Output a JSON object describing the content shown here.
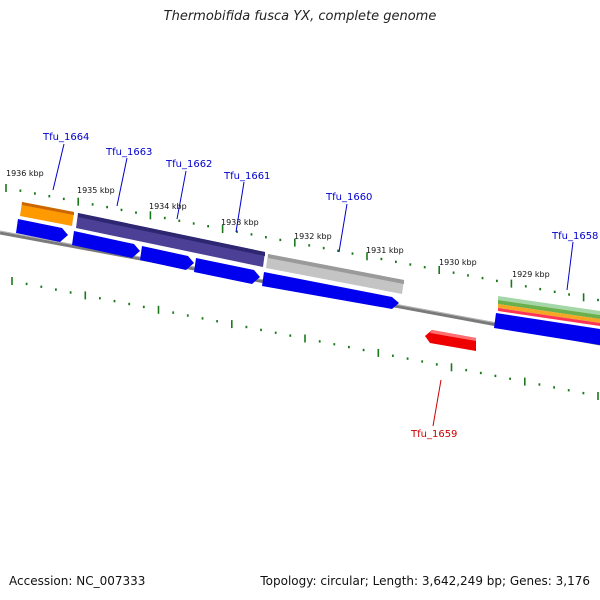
{
  "title": "Thermobifida fusca YX, complete genome",
  "footer": {
    "accession": "Accession: NC_007333",
    "stats": "Topology: circular; Length: 3,642,249 bp; Genes: 3,176"
  },
  "colors": {
    "backbone": "#7a7a7a",
    "ticks": "#1a7a1a",
    "label_forward": "#0000cc",
    "label_reverse": "#cc0000"
  },
  "kbp_labels": [
    "1936 kbp",
    "1935 kbp",
    "1934 kbp",
    "1933 kbp",
    "1932 kbp",
    "1931 kbp",
    "1930 kbp",
    "1929 kbp"
  ],
  "genes": [
    {
      "name": "Tfu_1664",
      "strand": "forward",
      "color": "#0000ee"
    },
    {
      "name": "Tfu_1663",
      "strand": "forward",
      "color": "#0000ee"
    },
    {
      "name": "Tfu_1662",
      "strand": "forward",
      "color": "#0000ee"
    },
    {
      "name": "Tfu_1661",
      "strand": "forward",
      "color": "#0000ee"
    },
    {
      "name": "Tfu_1660",
      "strand": "forward",
      "color": "#0000ee"
    },
    {
      "name": "Tfu_1659",
      "strand": "reverse",
      "color": "#ee0000"
    },
    {
      "name": "Tfu_1658",
      "strand": "forward",
      "color": "#0000ee"
    }
  ],
  "features": [
    {
      "name": "orange-feature",
      "color": "#ff9900"
    },
    {
      "name": "purple-feature",
      "color": "#4b3f96"
    },
    {
      "name": "gray-feature",
      "color": "#bdbdbd"
    },
    {
      "name": "multicolor-feature",
      "color": "#6ab04c"
    }
  ]
}
